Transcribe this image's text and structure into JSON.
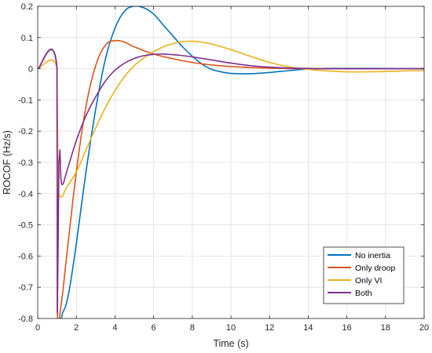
{
  "chart_data": {
    "type": "line",
    "title": "",
    "xlabel": "Time (s)",
    "ylabel": "ROCOF (Hz/s)",
    "xlim": [
      0,
      20
    ],
    "ylim": [
      -0.8,
      0.2
    ],
    "xticks": [
      0,
      2,
      4,
      6,
      8,
      10,
      12,
      14,
      16,
      18,
      20
    ],
    "xtick_labels": [
      "0",
      "2",
      "4",
      "6",
      "8",
      "10",
      "12",
      "14",
      "16",
      "18",
      "20"
    ],
    "yticks": [
      0.2,
      0.1,
      0,
      -0.1,
      -0.2,
      -0.3,
      -0.4,
      -0.5,
      -0.6,
      -0.7,
      -0.8
    ],
    "ytick_labels": [
      "0.2",
      "0.1",
      "0",
      "-0.1",
      "-0.2",
      "-0.3",
      "-0.4",
      "-0.5",
      "-0.6",
      "-0.7",
      "-0.8"
    ],
    "grid": true,
    "legend_position": "bottom-right",
    "series": [
      {
        "name": "No inertia",
        "color": "#0072BD",
        "points": [
          [
            0,
            0
          ],
          [
            1,
            0
          ],
          [
            1.02,
            -0.78
          ],
          [
            1.3,
            -0.78
          ],
          [
            1.6,
            -0.72
          ],
          [
            2,
            -0.56
          ],
          [
            2.5,
            -0.33
          ],
          [
            3,
            -0.13
          ],
          [
            3.5,
            0.03
          ],
          [
            4,
            0.13
          ],
          [
            4.5,
            0.185
          ],
          [
            5,
            0.2
          ],
          [
            5.5,
            0.195
          ],
          [
            6,
            0.175
          ],
          [
            6.5,
            0.14
          ],
          [
            7,
            0.105
          ],
          [
            7.5,
            0.07
          ],
          [
            8,
            0.04
          ],
          [
            8.5,
            0.015
          ],
          [
            9,
            -0.002
          ],
          [
            9.5,
            -0.01
          ],
          [
            10,
            -0.015
          ],
          [
            11,
            -0.016
          ],
          [
            12,
            -0.012
          ],
          [
            13,
            -0.006
          ],
          [
            14,
            -0.001
          ],
          [
            15,
            0.001
          ],
          [
            17,
            0.001
          ],
          [
            20,
            0
          ]
        ]
      },
      {
        "name": "Only droop",
        "color": "#D95319",
        "points": [
          [
            0,
            0
          ],
          [
            1,
            0
          ],
          [
            1.02,
            -0.765
          ],
          [
            1.2,
            -0.76
          ],
          [
            1.5,
            -0.6
          ],
          [
            2,
            -0.33
          ],
          [
            2.5,
            -0.12
          ],
          [
            3,
            0.01
          ],
          [
            3.5,
            0.075
          ],
          [
            4,
            0.09
          ],
          [
            4.5,
            0.085
          ],
          [
            5,
            0.07
          ],
          [
            6,
            0.047
          ],
          [
            7,
            0.032
          ],
          [
            8,
            0.02
          ],
          [
            9,
            0.012
          ],
          [
            10,
            0.007
          ],
          [
            11,
            0.004
          ],
          [
            12,
            0.002
          ],
          [
            14,
            0
          ],
          [
            20,
            0
          ]
        ]
      },
      {
        "name": "Only VI",
        "color": "#EDB120",
        "points": [
          [
            0,
            0
          ],
          [
            1,
            0
          ],
          [
            1.05,
            -0.35
          ],
          [
            1.2,
            -0.41
          ],
          [
            1.5,
            -0.38
          ],
          [
            2,
            -0.33
          ],
          [
            2.5,
            -0.26
          ],
          [
            3,
            -0.19
          ],
          [
            3.5,
            -0.125
          ],
          [
            4,
            -0.07
          ],
          [
            4.5,
            -0.025
          ],
          [
            5,
            0.01
          ],
          [
            5.5,
            0.035
          ],
          [
            6,
            0.055
          ],
          [
            6.5,
            0.07
          ],
          [
            7,
            0.08
          ],
          [
            7.5,
            0.087
          ],
          [
            8,
            0.088
          ],
          [
            8.5,
            0.085
          ],
          [
            9,
            0.079
          ],
          [
            10,
            0.061
          ],
          [
            11,
            0.04
          ],
          [
            12,
            0.02
          ],
          [
            13,
            0.006
          ],
          [
            14,
            -0.002
          ],
          [
            15,
            -0.007
          ],
          [
            16,
            -0.01
          ],
          [
            17,
            -0.01
          ],
          [
            18,
            -0.009
          ],
          [
            19,
            -0.007
          ],
          [
            20,
            -0.006
          ]
        ]
      },
      {
        "name": "Both",
        "color": "#7E2F8E",
        "points": [
          [
            0,
            0
          ],
          [
            1,
            0
          ],
          [
            1.02,
            -0.78
          ],
          [
            1.1,
            -0.3
          ],
          [
            1.15,
            -0.26
          ],
          [
            1.2,
            -0.35
          ],
          [
            1.3,
            -0.37
          ],
          [
            1.5,
            -0.33
          ],
          [
            2,
            -0.23
          ],
          [
            2.5,
            -0.15
          ],
          [
            3,
            -0.09
          ],
          [
            3.5,
            -0.04
          ],
          [
            4,
            -0.005
          ],
          [
            4.5,
            0.018
          ],
          [
            5,
            0.033
          ],
          [
            5.5,
            0.042
          ],
          [
            6,
            0.046
          ],
          [
            6.5,
            0.047
          ],
          [
            7,
            0.045
          ],
          [
            7.5,
            0.042
          ],
          [
            8,
            0.038
          ],
          [
            9,
            0.028
          ],
          [
            10,
            0.018
          ],
          [
            11,
            0.01
          ],
          [
            12,
            0.005
          ],
          [
            13,
            0.002
          ],
          [
            14,
            0.001
          ],
          [
            15,
            0
          ],
          [
            20,
            0
          ]
        ]
      }
    ]
  }
}
